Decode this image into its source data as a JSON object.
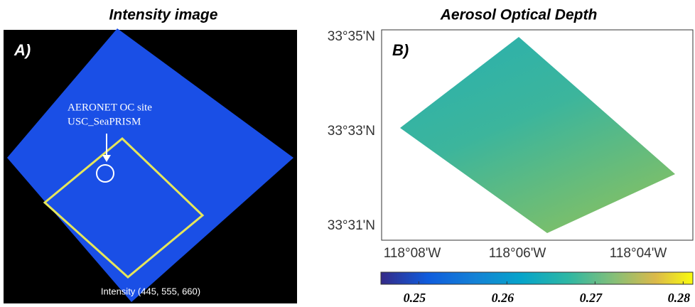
{
  "panel_a": {
    "title": "Intensity image",
    "label": "A)",
    "annotation": [
      "AERONET OC site",
      "USC_SeaPRISM"
    ],
    "caption": "Intensity (445, 555, 660)"
  },
  "panel_b": {
    "title": "Aerosol Optical Depth",
    "label": "B)",
    "yticks": [
      "33°35'N",
      "33°33'N",
      "33°31'N"
    ],
    "xticks": [
      "118°08'W",
      "118°06'W",
      "118°04'W"
    ],
    "colorbar": {
      "lim": [
        0.2457,
        0.2811
      ],
      "ticks": [
        0.25,
        0.26,
        0.27,
        0.28
      ]
    }
  }
}
